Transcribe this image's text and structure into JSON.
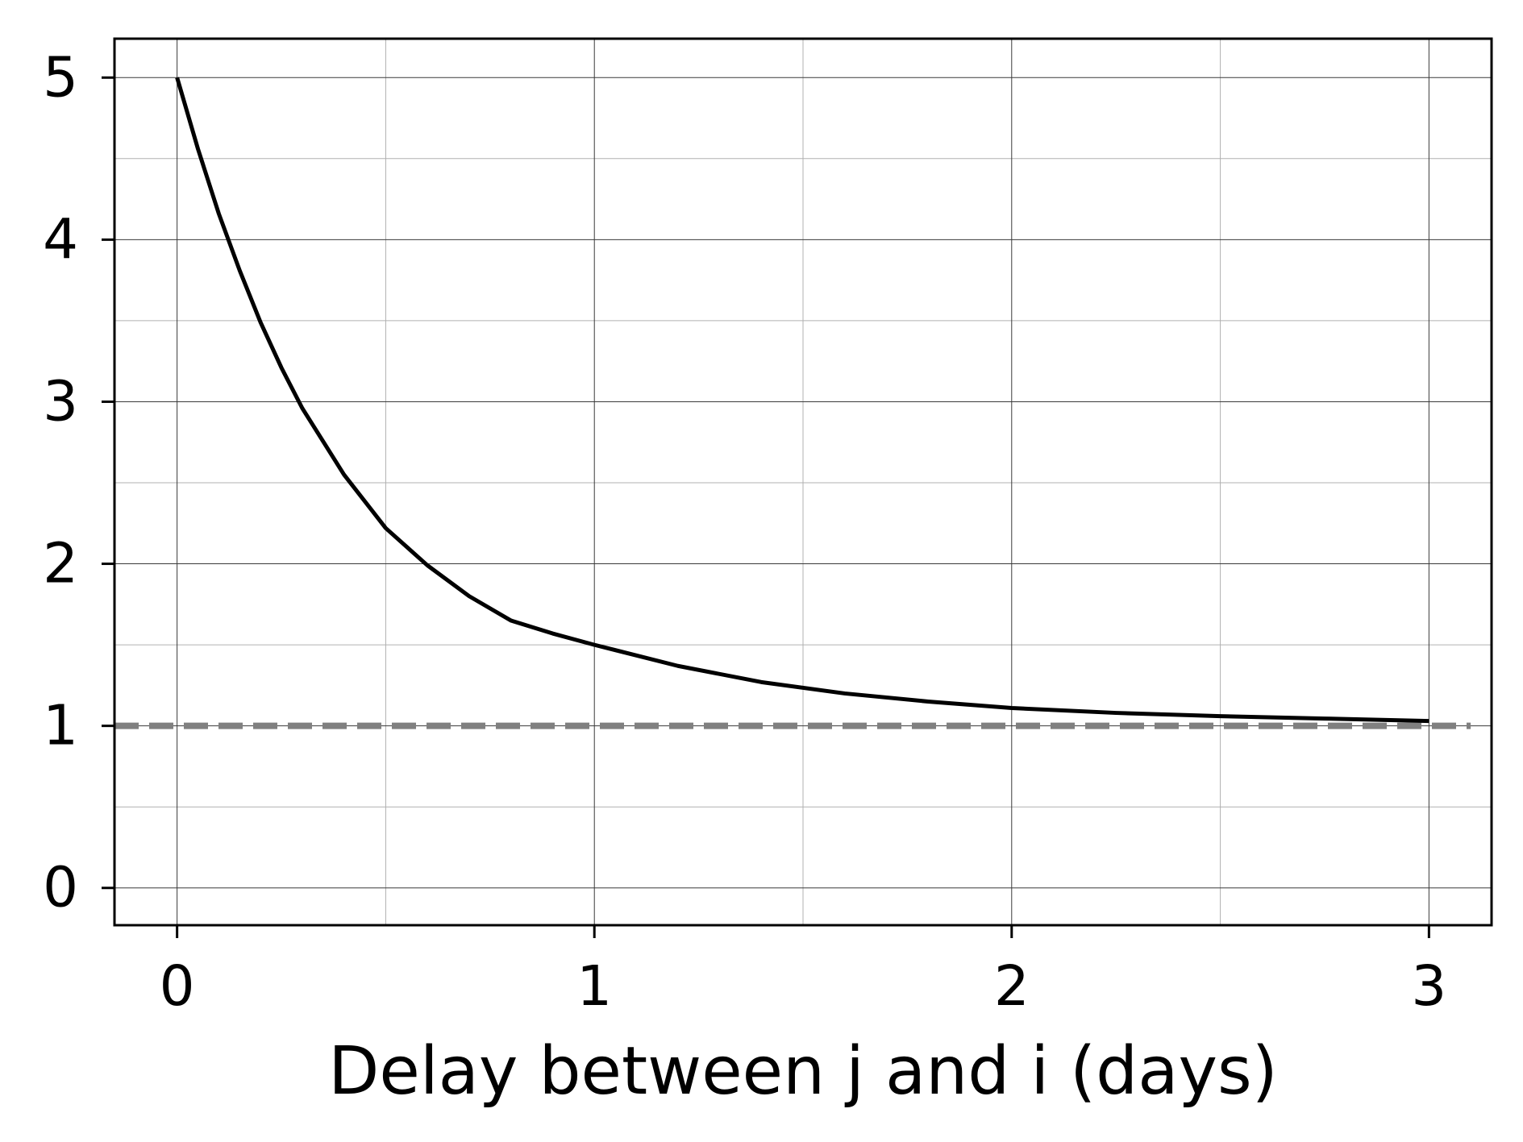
{
  "chart_data": {
    "type": "line",
    "xlabel": "Delay between j and i (days)",
    "ylabel": "",
    "xlim": [
      -0.15,
      3.15
    ],
    "ylim": [
      -0.23,
      5.24
    ],
    "x_ticks": [
      0,
      1,
      2,
      3
    ],
    "x_tick_labels": [
      "0",
      "1",
      "2",
      "3"
    ],
    "y_ticks": [
      0,
      1,
      2,
      3,
      4,
      5
    ],
    "y_tick_labels": [
      "0",
      "1",
      "2",
      "3",
      "4",
      "5"
    ],
    "x_minor_grid": [
      0.5,
      1.5,
      2.5
    ],
    "y_minor_grid": [
      0.5,
      1.5,
      2.5,
      3.5,
      4.5
    ],
    "grid": true,
    "legend": "none",
    "series": [
      {
        "style": "solid",
        "color": "#000000",
        "x": [
          0,
          0.05,
          0.1,
          0.15,
          0.2,
          0.25,
          0.3,
          0.4,
          0.5,
          0.6,
          0.7,
          0.8,
          0.9,
          1.0,
          1.2,
          1.4,
          1.6,
          1.8,
          2.0,
          2.25,
          2.5,
          2.75,
          3.0
        ],
        "y": [
          5.0,
          4.56,
          4.16,
          3.81,
          3.49,
          3.21,
          2.96,
          2.55,
          2.22,
          1.99,
          1.8,
          1.65,
          1.57,
          1.5,
          1.37,
          1.27,
          1.2,
          1.15,
          1.11,
          1.08,
          1.06,
          1.045,
          1.03
        ]
      }
    ],
    "reference_lines": [
      {
        "axis": "y",
        "value": 1,
        "style": "dashed",
        "color": "#808080"
      }
    ]
  }
}
